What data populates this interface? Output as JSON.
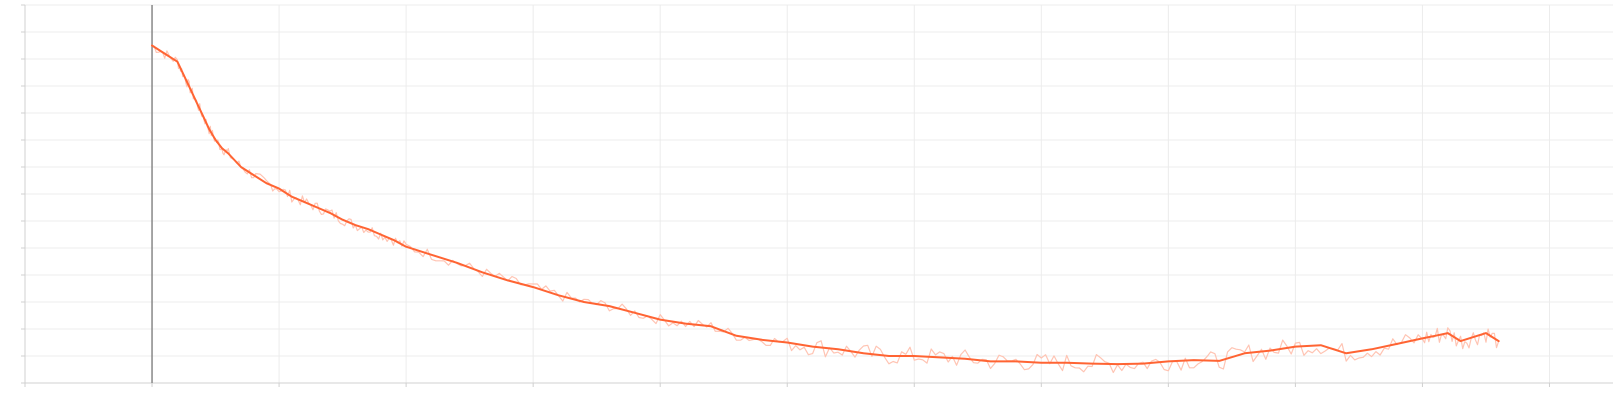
{
  "chart_data": {
    "type": "line",
    "title": "",
    "xlabel": "",
    "ylabel": "",
    "grid": true,
    "legend": "none",
    "x_range": [
      -1,
      11.5
    ],
    "y_range": [
      0,
      14
    ],
    "x_ticks": [
      -1,
      0,
      1,
      2,
      3,
      4,
      5,
      6,
      7,
      8,
      9,
      10,
      11
    ],
    "y_ticks": [
      0,
      1,
      2,
      3,
      4,
      5,
      6,
      7,
      8,
      9,
      10,
      11,
      12,
      13,
      14
    ],
    "tick_labels_visible": false,
    "colors": {
      "smoothed": "#ff6433",
      "raw": "#ffc4b3",
      "grid": "#ececec",
      "axis": "#d0d0d0",
      "vline": "#888888"
    },
    "series": [
      {
        "role": "smoothed",
        "x": [
          0,
          0.1,
          0.2,
          0.25,
          0.3,
          0.35,
          0.4,
          0.45,
          0.5,
          0.55,
          0.6,
          0.7,
          0.8,
          0.9,
          1.0,
          1.1,
          1.2,
          1.3,
          1.4,
          1.5,
          1.6,
          1.7,
          1.8,
          1.9,
          2.0,
          2.2,
          2.4,
          2.6,
          2.8,
          3.0,
          3.2,
          3.4,
          3.6,
          3.8,
          4.0,
          4.2,
          4.4,
          4.6,
          4.8,
          5.0,
          5.2,
          5.4,
          5.6,
          5.8,
          6.0,
          6.2,
          6.4,
          6.6,
          6.8,
          7.0,
          7.2,
          7.4,
          7.6,
          7.8,
          8.0,
          8.2,
          8.4,
          8.6,
          8.8,
          9.0,
          9.2,
          9.4,
          9.6,
          9.8,
          10.0,
          10.1,
          10.2,
          10.3,
          10.4,
          10.5,
          10.6
        ],
        "y": [
          12.5,
          12.2,
          11.9,
          11.4,
          10.9,
          10.4,
          9.9,
          9.4,
          9.0,
          8.7,
          8.5,
          8.0,
          7.7,
          7.4,
          7.2,
          6.9,
          6.7,
          6.5,
          6.3,
          6.05,
          5.85,
          5.7,
          5.5,
          5.3,
          5.05,
          4.75,
          4.45,
          4.1,
          3.8,
          3.55,
          3.25,
          3.0,
          2.85,
          2.6,
          2.35,
          2.2,
          2.1,
          1.75,
          1.6,
          1.5,
          1.35,
          1.25,
          1.1,
          1.0,
          1.0,
          0.95,
          0.9,
          0.8,
          0.8,
          0.75,
          0.75,
          0.72,
          0.7,
          0.72,
          0.8,
          0.85,
          0.82,
          1.1,
          1.2,
          1.35,
          1.4,
          1.1,
          1.25,
          1.45,
          1.65,
          1.75,
          1.85,
          1.55,
          1.7,
          1.85,
          1.55
        ]
      }
    ]
  }
}
